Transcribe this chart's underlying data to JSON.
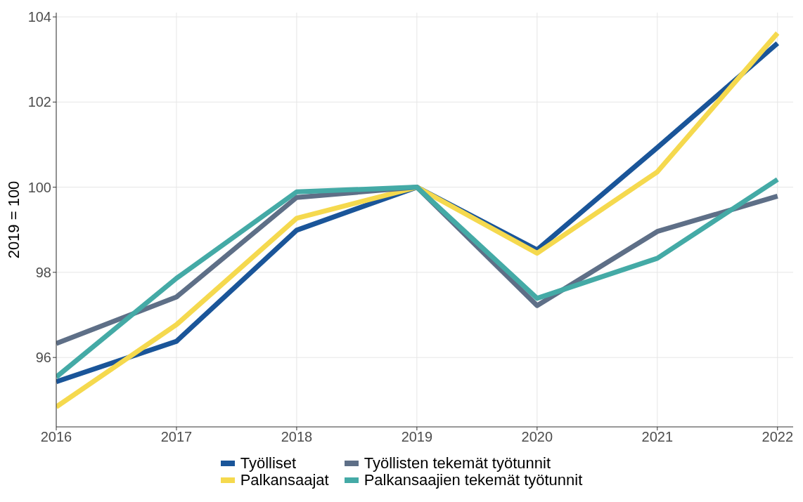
{
  "chart_data": {
    "type": "line",
    "ylabel": "2019 = 100",
    "x": [
      2016,
      2017,
      2018,
      2019,
      2020,
      2021,
      2022
    ],
    "xlim": [
      2016,
      2022.13
    ],
    "xticks": [
      2016,
      2017,
      2018,
      2019,
      2020,
      2021,
      2022
    ],
    "ylim": [
      94.37,
      104.1
    ],
    "yticks": [
      96,
      98,
      100,
      102,
      104
    ],
    "grid": true,
    "legend": "bottom",
    "marker": "none",
    "line_style": "solid",
    "series": [
      {
        "name": "Työlliset",
        "color": "#1a5599",
        "values": [
          95.43,
          96.38,
          98.99,
          100,
          98.53,
          100.93,
          103.38
        ]
      },
      {
        "name": "Palkansaajat",
        "color": "#f5d94e",
        "values": [
          94.84,
          96.77,
          99.27,
          100,
          98.45,
          100.36,
          103.62
        ]
      },
      {
        "name": "Työllisten tekemät työtunnit",
        "color": "#5e6f87",
        "values": [
          96.33,
          97.42,
          99.76,
          100,
          97.22,
          98.96,
          99.79
        ]
      },
      {
        "name": "Palkansaajien tekemät työtunnit",
        "color": "#44aaa6",
        "values": [
          95.54,
          97.86,
          99.89,
          100,
          97.39,
          98.33,
          100.18
        ]
      }
    ]
  }
}
